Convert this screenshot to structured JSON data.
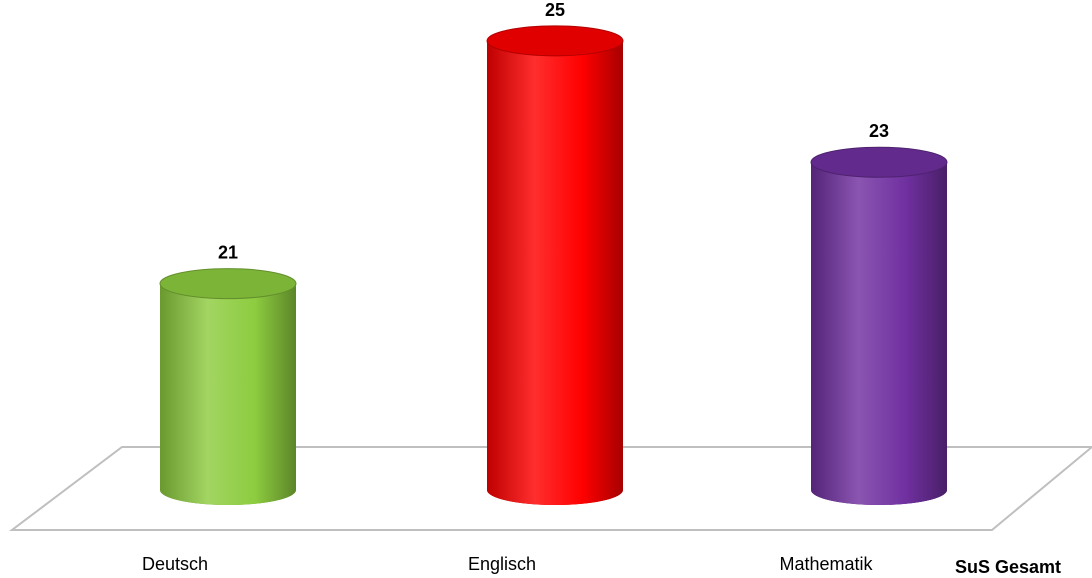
{
  "chart_data": {
    "type": "bar",
    "style": "3d-cylinder",
    "categories": [
      "Deutsch",
      "Englisch",
      "Mathematik"
    ],
    "values": [
      21,
      25,
      23
    ],
    "series": [
      {
        "name": "SuS Gesamt",
        "values": [
          21,
          25,
          23
        ]
      }
    ],
    "colors": [
      "#8dcc3f",
      "#ff0000",
      "#7030a0"
    ],
    "ylim": [
      17.6,
      25
    ],
    "title": "",
    "xlabel": "",
    "ylabel": "",
    "grid": false,
    "legend": "none",
    "floor_color": "#bfbfbf"
  }
}
